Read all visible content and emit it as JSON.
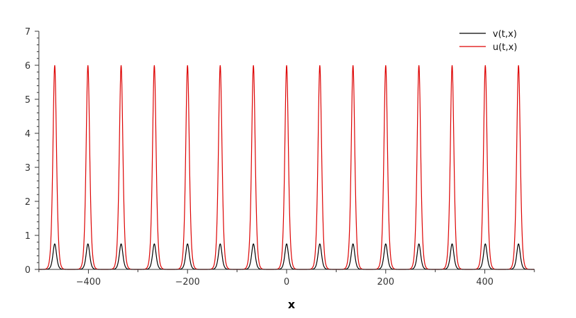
{
  "chart_data": {
    "type": "line",
    "xlabel": "x",
    "ylabel": "",
    "xlim": [
      -500,
      500
    ],
    "ylim": [
      0,
      7
    ],
    "x_ticks": [
      -400,
      -200,
      0,
      200,
      400
    ],
    "x_tick_labels": [
      "−400",
      "−200",
      "0",
      "200",
      "400"
    ],
    "y_ticks": [
      0,
      1,
      2,
      3,
      4,
      5,
      6,
      7
    ],
    "y_tick_labels": [
      "0",
      "1",
      "2",
      "3",
      "4",
      "5",
      "6",
      "7"
    ],
    "grid": false,
    "legend_position": "top-right",
    "peak_centers": [
      -468,
      -401,
      -334,
      -267,
      -200,
      -134,
      -67,
      0,
      67,
      134,
      200,
      267,
      334,
      401,
      468
    ],
    "series": [
      {
        "name": "v(t,x)",
        "color": "#000000",
        "shape": "sech-squared train",
        "peak_value": 0.75,
        "width": 4.8
      },
      {
        "name": "u(t,x)",
        "color": "#dd0000",
        "shape": "sech-squared train",
        "peak_value": 6.0,
        "width": 4.8
      }
    ]
  }
}
